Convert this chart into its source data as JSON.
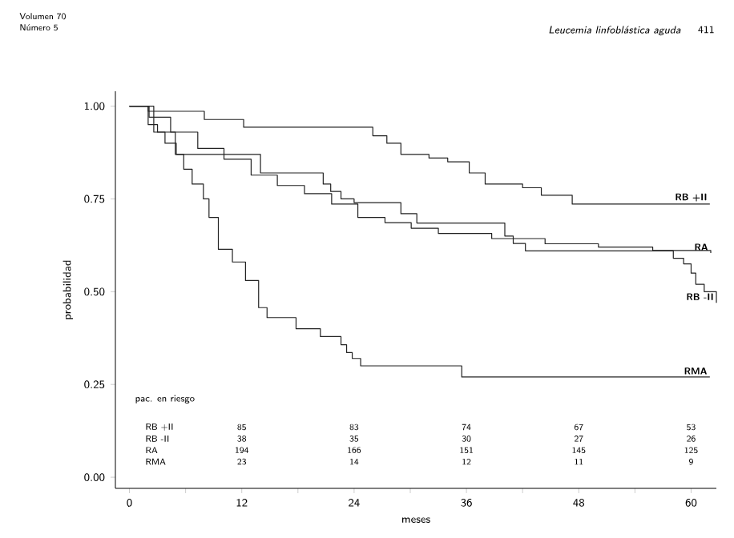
{
  "chart_data": {
    "type": "step",
    "xlabel": "meses",
    "ylabel": "probabilidad",
    "xlim": [
      -1.5,
      62.7
    ],
    "ylim": [
      -0.03,
      1.04
    ],
    "xticks": [
      0,
      {
        "value": 6,
        "label": null
      },
      12,
      {
        "value": 18,
        "label": null
      },
      24,
      {
        "value": 30,
        "label": null
      },
      36,
      {
        "value": 42,
        "label": null
      },
      48,
      {
        "value": 54,
        "label": null
      },
      60
    ],
    "yticks": [
      {
        "value": 0,
        "label": "0.00"
      },
      {
        "value": 0.25,
        "label": "0.25"
      },
      {
        "value": 0.5,
        "label": "0.50"
      },
      {
        "value": 0.75,
        "label": "0.75"
      },
      {
        "value": 1,
        "label": "1.00"
      }
    ],
    "series": [
      {
        "name": "RB +II",
        "color": "#222222",
        "x": [
          0,
          2,
          8,
          12.2,
          26,
          27.5,
          29,
          32,
          34,
          36.3,
          38,
          42,
          44,
          47.3,
          62
        ],
        "values": [
          1.0,
          0.986,
          0.964,
          0.943,
          0.92,
          0.9,
          0.87,
          0.86,
          0.85,
          0.82,
          0.79,
          0.78,
          0.76,
          0.736,
          0.736
        ]
      },
      {
        "name": "RA",
        "color": "#222222",
        "x": [
          0,
          2.1,
          4.4,
          7.3,
          10.1,
          13,
          15.8,
          18.7,
          21.6,
          24.4,
          27.3,
          30.1,
          33,
          38.7,
          44.4,
          50.1,
          55.9,
          62.1
        ],
        "values": [
          1.0,
          0.97,
          0.93,
          0.886,
          0.857,
          0.814,
          0.786,
          0.764,
          0.736,
          0.7,
          0.686,
          0.671,
          0.657,
          0.643,
          0.629,
          0.62,
          0.611,
          0.604
        ]
      },
      {
        "name": "RB -II",
        "color": "#222222",
        "x": [
          0,
          2.6,
          4.9,
          14,
          20.7,
          21.5,
          22.6,
          24,
          29,
          30.7,
          40.1,
          41,
          42.3,
          58.1,
          59.2,
          60,
          60.5,
          61.4,
          62.7
        ],
        "values": [
          1.0,
          0.93,
          0.87,
          0.82,
          0.79,
          0.77,
          0.75,
          0.74,
          0.71,
          0.685,
          0.65,
          0.63,
          0.61,
          0.59,
          0.575,
          0.55,
          0.52,
          0.5,
          0.47
        ]
      },
      {
        "name": "RMA",
        "color": "#222222",
        "x": [
          0,
          2,
          3,
          3.8,
          5,
          5.8,
          6.7,
          7.9,
          8.5,
          9.5,
          11,
          12.4,
          13.8,
          14.7,
          17.8,
          20.4,
          22.6,
          23.2,
          23.8,
          24.7,
          35.5,
          62
        ],
        "values": [
          1.0,
          0.95,
          0.93,
          0.9,
          0.87,
          0.83,
          0.79,
          0.75,
          0.7,
          0.614,
          0.58,
          0.53,
          0.457,
          0.43,
          0.4,
          0.379,
          0.357,
          0.336,
          0.32,
          0.3,
          0.27,
          0.27
        ]
      }
    ],
    "annotations": [
      "Volumen 70",
      "Número 5",
      "*Leucemia linfoblástica aguda*",
      "411",
      "pac. en riesgo",
      "RB +II",
      "85",
      "83",
      "74",
      "67",
      "53",
      "RB -II",
      "38",
      "35",
      "30",
      "27",
      "26",
      "RA",
      "194",
      "166",
      "151",
      "145",
      "125",
      "RMA",
      "23",
      "14",
      "12",
      "11",
      "9"
    ]
  }
}
